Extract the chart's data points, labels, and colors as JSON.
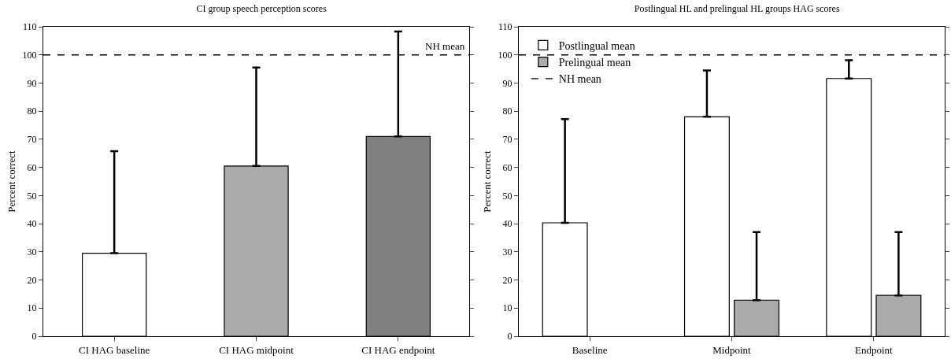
{
  "chart_data": [
    {
      "type": "bar",
      "title": "CI group speech perception scores",
      "ylabel": "Percent correct",
      "categories": [
        "CI HAG baseline",
        "CI HAG midpoint",
        "CI HAG endpoint"
      ],
      "values": [
        29.5,
        60.5,
        71
      ],
      "colors": [
        "#ffffff",
        "#aaaaaa",
        "#808080"
      ],
      "errors": [
        [
          29.5,
          65.8
        ],
        [
          60.5,
          95.5
        ],
        [
          71,
          108.3
        ]
      ],
      "ylim": [
        0,
        110
      ],
      "yticks": [
        0,
        10,
        20,
        30,
        40,
        50,
        60,
        70,
        80,
        90,
        100,
        110
      ],
      "grid": false,
      "legend": false,
      "ref_lines": [
        {
          "axis": "y",
          "value": 100,
          "label": "NH mean",
          "line_style": "dashed",
          "color": "#000000"
        }
      ]
    },
    {
      "type": "bar",
      "title": "Postlingual HL and prelingual HL groups HAG scores",
      "ylabel": "Percent correct",
      "categories": [
        "Baseline",
        "Midpoint",
        "Endpoint"
      ],
      "series": [
        {
          "name": "Postlingual mean",
          "color": "#ffffff",
          "values": [
            40.3,
            78,
            91.6
          ],
          "errors": [
            [
              40.3,
              77.2
            ],
            [
              78,
              94.5
            ],
            [
              91.6,
              98.1
            ]
          ]
        },
        {
          "name": "Prelingual mean",
          "color": "#aaaaaa",
          "values": [
            null,
            12.8,
            14.5
          ],
          "errors": [
            null,
            [
              12.8,
              37
            ],
            [
              14.5,
              37
            ]
          ]
        }
      ],
      "ylim": [
        0,
        110
      ],
      "yticks": [
        0,
        10,
        20,
        30,
        40,
        50,
        60,
        70,
        80,
        90,
        100,
        110
      ],
      "grid": false,
      "legend": "top left",
      "ref_lines": [
        {
          "axis": "y",
          "value": 100,
          "label": "NH mean",
          "line_style": "dashed",
          "color": "#000000"
        }
      ]
    }
  ]
}
